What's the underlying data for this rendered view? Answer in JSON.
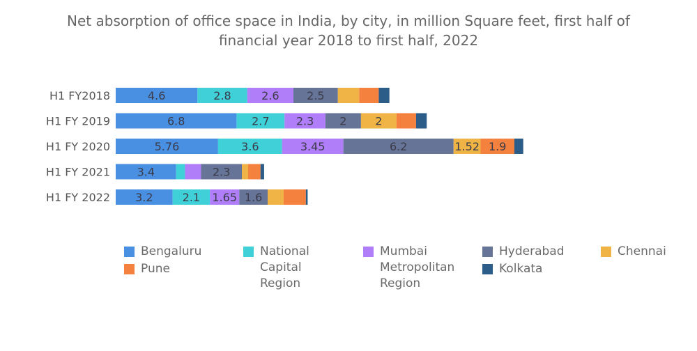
{
  "chart_data": {
    "type": "bar",
    "orientation": "horizontal",
    "stacked": true,
    "title_lines": [
      "Net absorption of office space in India, by city, in million Square feet, first half of",
      "financial year 2018 to first half, 2022"
    ],
    "xlabel": "",
    "ylabel": "",
    "grid": false,
    "legend_position": "bottom",
    "xlim": [
      0,
      23
    ],
    "categories": [
      "H1 FY2018",
      "H1 FY 2019",
      "H1 FY 2020",
      "H1 FY 2021",
      "H1 FY 2022"
    ],
    "series": [
      {
        "name": "Bengaluru",
        "legend_label": "Bengaluru",
        "color": "#4a90e2",
        "values": [
          4.6,
          6.8,
          5.76,
          3.4,
          3.2
        ],
        "labels": [
          "4.6",
          "6.8",
          "5.76",
          "3.4",
          "3.2"
        ]
      },
      {
        "name": "National Capital Region",
        "legend_label": "National\nCapital\nRegion",
        "color": "#40d0d8",
        "values": [
          2.8,
          2.7,
          3.6,
          0.5,
          2.1
        ],
        "labels": [
          "2.8",
          "2.7",
          "3.6",
          "",
          "2.1"
        ]
      },
      {
        "name": "Mumbai Metropolitan Region",
        "legend_label": "Mumbai\nMetropolitan\nRegion",
        "color": "#b07ef8",
        "values": [
          2.6,
          2.3,
          3.45,
          0.9,
          1.65
        ],
        "labels": [
          "2.6",
          "2.3",
          "3.45",
          "",
          "1.65"
        ]
      },
      {
        "name": "Hyderabad",
        "legend_label": "Hyderabad",
        "color": "#657497",
        "values": [
          2.5,
          2,
          6.2,
          2.3,
          1.6
        ],
        "labels": [
          "2.5",
          "2",
          "6.2",
          "2.3",
          "1.6"
        ]
      },
      {
        "name": "Chennai",
        "legend_label": "Chennai",
        "color": "#f0b345",
        "values": [
          1.2,
          2,
          1.52,
          0.35,
          0.9
        ],
        "labels": [
          "",
          "2",
          "1.52",
          "",
          ""
        ]
      },
      {
        "name": "Pune",
        "legend_label": "Pune",
        "color": "#f5813f",
        "values": [
          1.1,
          1.1,
          1.9,
          0.7,
          1.25
        ],
        "labels": [
          "",
          "",
          "1.9",
          "",
          ""
        ]
      },
      {
        "name": "Kolkata",
        "legend_label": "Kolkata",
        "color": "#2c5d89",
        "values": [
          0.6,
          0.6,
          0.5,
          0.2,
          0.1
        ],
        "labels": [
          "",
          "",
          "",
          "",
          ""
        ]
      }
    ]
  }
}
